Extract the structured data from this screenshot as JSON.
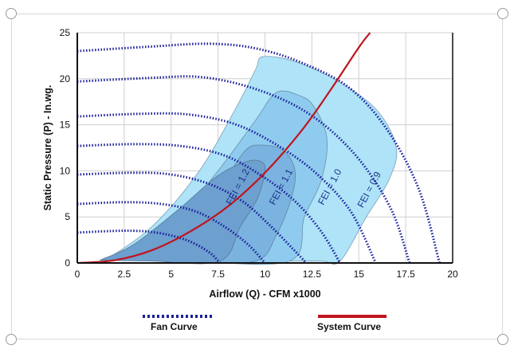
{
  "chart_data": {
    "type": "line",
    "xlabel": "Airflow (Q) - CFM x1000",
    "ylabel": "Static Pressure (P) - In.wg.",
    "xlim": [
      0,
      20
    ],
    "ylim": [
      0,
      25
    ],
    "xticks": [
      "0",
      "2.5",
      "5",
      "7.5",
      "10",
      "12.5",
      "15",
      "17.5",
      "20"
    ],
    "yticks": [
      "0",
      "5",
      "10",
      "15",
      "20",
      "25"
    ],
    "grid": true,
    "colors": {
      "fan_curve": "#1a1f9a",
      "system_curve": "#c0141c",
      "fei_outer": "#aee3f8",
      "fei_mid": "#8fcbee",
      "fei_inner": "#7ab3df",
      "fei_core": "#6d9fcf"
    },
    "fan_curves": [
      {
        "values": [
          [
            0,
            23.0
          ],
          [
            4,
            23.5
          ],
          [
            7,
            23.8
          ],
          [
            9.5,
            23.3
          ],
          [
            12,
            21.7
          ],
          [
            14.5,
            19
          ],
          [
            16.5,
            14.5
          ],
          [
            18.2,
            8
          ],
          [
            19.3,
            0
          ]
        ]
      },
      {
        "values": [
          [
            0,
            19.7
          ],
          [
            4,
            20.1
          ],
          [
            6.5,
            20.2
          ],
          [
            9,
            19.2
          ],
          [
            11.5,
            17.2
          ],
          [
            13.5,
            14.4
          ],
          [
            15.3,
            10.5
          ],
          [
            16.8,
            5.5
          ],
          [
            17.7,
            0
          ]
        ]
      },
      {
        "values": [
          [
            0,
            15.9
          ],
          [
            3.5,
            16.2
          ],
          [
            6,
            16.1
          ],
          [
            8.5,
            15.0
          ],
          [
            10.8,
            12.6
          ],
          [
            12.8,
            9.6
          ],
          [
            14.6,
            5.5
          ],
          [
            15.9,
            0
          ]
        ]
      },
      {
        "values": [
          [
            0,
            12.7
          ],
          [
            3,
            12.9
          ],
          [
            5.5,
            12.7
          ],
          [
            7.8,
            11.7
          ],
          [
            9.8,
            9.5
          ],
          [
            11.6,
            6.7
          ],
          [
            13,
            3.4
          ],
          [
            14,
            0
          ]
        ]
      },
      {
        "values": [
          [
            0,
            9.6
          ],
          [
            3,
            9.8
          ],
          [
            5,
            9.6
          ],
          [
            7,
            8.6
          ],
          [
            8.8,
            6.7
          ],
          [
            10.3,
            4.0
          ],
          [
            11.5,
            1.5
          ],
          [
            12.2,
            0
          ]
        ]
      },
      {
        "values": [
          [
            0,
            6.4
          ],
          [
            2.5,
            6.6
          ],
          [
            4.5,
            6.4
          ],
          [
            6.3,
            5.6
          ],
          [
            7.8,
            4.0
          ],
          [
            9.1,
            2.0
          ],
          [
            10,
            0
          ]
        ]
      },
      {
        "values": [
          [
            0,
            3.3
          ],
          [
            2.5,
            3.5
          ],
          [
            4.2,
            3.3
          ],
          [
            5.8,
            2.5
          ],
          [
            7,
            1.2
          ],
          [
            7.6,
            0
          ]
        ]
      }
    ],
    "system_curve": {
      "values": [
        [
          0,
          0
        ],
        [
          2,
          0.3
        ],
        [
          4,
          1.4
        ],
        [
          6,
          3.4
        ],
        [
          8,
          6.1
        ],
        [
          10,
          9.8
        ],
        [
          12,
          14.5
        ],
        [
          13.5,
          18.8
        ],
        [
          15,
          23.4
        ],
        [
          15.6,
          25
        ]
      ]
    },
    "fei_labels": [
      {
        "text": "FEI = 1.2",
        "x": 8.7,
        "y": 8.1
      },
      {
        "text": "FEI = 1.1",
        "x": 11.0,
        "y": 8.1
      },
      {
        "text": "FEI = 1.0",
        "x": 13.6,
        "y": 8.1
      },
      {
        "text": "FEI = 0.9",
        "x": 15.7,
        "y": 7.8
      }
    ],
    "legend": [
      {
        "label": "Fan Curve",
        "style": "dotted",
        "color": "#1a1f9a"
      },
      {
        "label": "System Curve",
        "style": "solid",
        "color": "#c0141c"
      }
    ]
  }
}
